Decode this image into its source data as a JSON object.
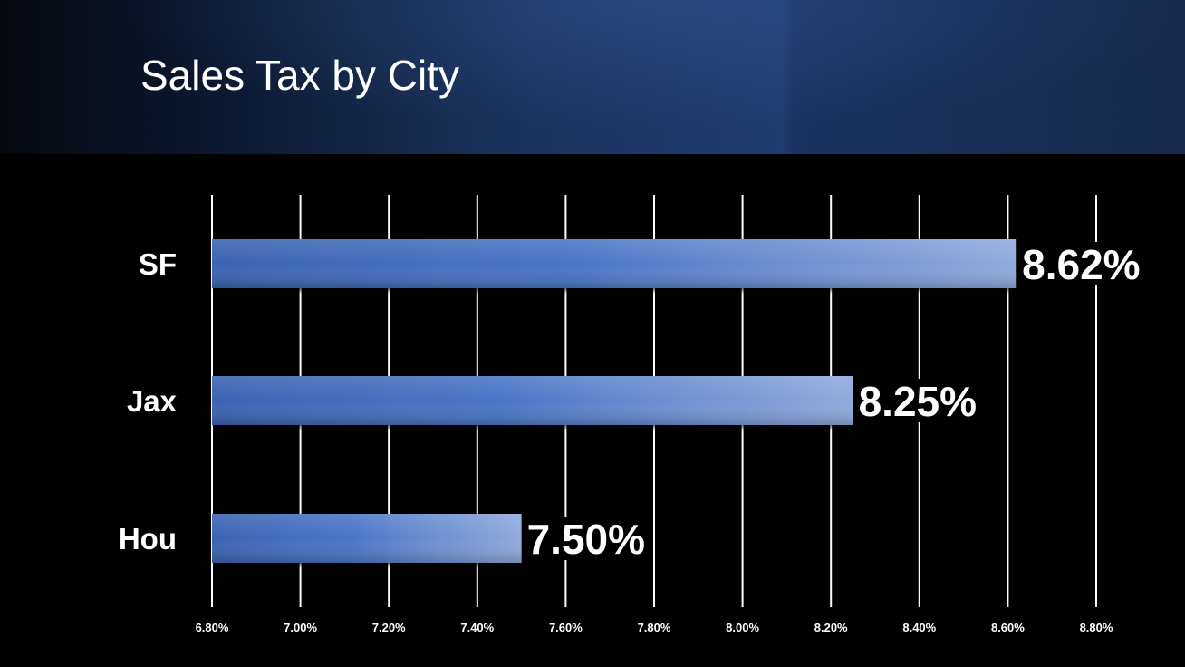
{
  "slide": {
    "title": "Sales Tax by City",
    "colors": {
      "background": "#000000",
      "header_band": "#1f3d70",
      "bar_start": "#3a63b0",
      "bar_end": "#8faadc",
      "text": "#ffffff",
      "grid": "#ffffff"
    }
  },
  "chart_data": {
    "type": "bar",
    "orientation": "horizontal",
    "title": "Sales Tax by City",
    "xlabel": "",
    "ylabel": "",
    "categories": [
      "SF",
      "Jax",
      "Hou"
    ],
    "values": [
      8.62,
      8.25,
      7.5
    ],
    "value_labels": [
      "8.62%",
      "8.25%",
      "7.50%"
    ],
    "xlim": [
      6.8,
      8.8
    ],
    "x_ticks": [
      6.8,
      7.0,
      7.2,
      7.4,
      7.6,
      7.8,
      8.0,
      8.2,
      8.4,
      8.6,
      8.8
    ],
    "x_tick_labels": [
      "6.80%",
      "7.00%",
      "7.20%",
      "7.40%",
      "7.60%",
      "7.80%",
      "8.00%",
      "8.20%",
      "8.40%",
      "8.60%",
      "8.80%"
    ],
    "grid": true,
    "legend": "none"
  }
}
